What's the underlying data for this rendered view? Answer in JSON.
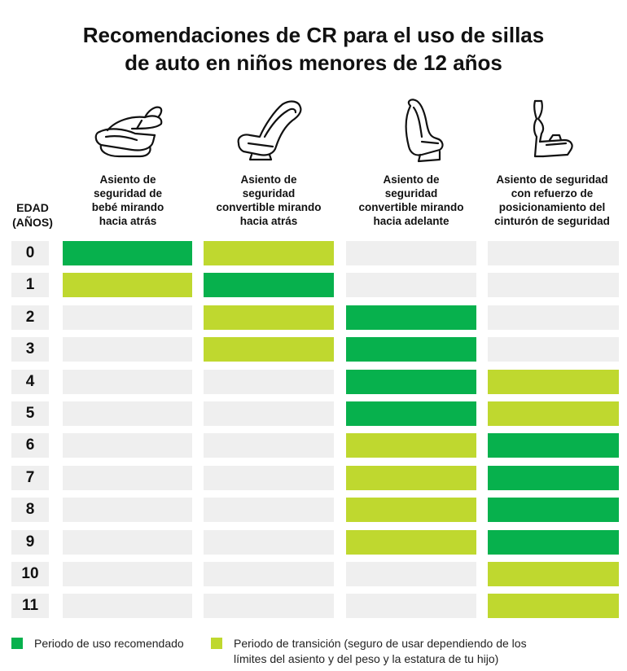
{
  "title": {
    "line1": "Recomendaciones de CR para el uso de sillas",
    "line2": "de auto en niños menores de 12 años"
  },
  "age_header": {
    "line1": "EDAD",
    "line2": "(AÑOS)"
  },
  "seats": [
    {
      "icon": "infant-carrier-seat-icon",
      "lines": [
        "Asiento de",
        "seguridad de",
        "bebé mirando",
        "hacia atrás"
      ]
    },
    {
      "icon": "rear-facing-convertible-seat-icon",
      "lines": [
        "Asiento de",
        "seguridad",
        "convertible mirando",
        "hacia atrás"
      ]
    },
    {
      "icon": "forward-facing-convertible-seat-icon",
      "lines": [
        "Asiento de",
        "seguridad",
        "convertible mirando",
        "hacia adelante"
      ]
    },
    {
      "icon": "booster-seat-icon",
      "lines": [
        "Asiento de seguridad",
        "con refuerzo de",
        "posicionamiento del",
        "cinturón de seguridad"
      ]
    }
  ],
  "colors": {
    "recommended": "#07b14d",
    "transition": "#bfd82f",
    "none": "#efefef"
  },
  "legend": {
    "recommended": "Periodo de uso recomendado",
    "transition_line1": "Periodo de transición (seguro de usar dependiendo de los",
    "transition_line2": "límites del asiento y del peso y la estatura de tu hijo)"
  },
  "chart_data": {
    "type": "table",
    "title": "Recomendaciones de CR para el uso de sillas de auto en niños menores de 12 años",
    "row_label": "EDAD (AÑOS)",
    "ages": [
      "0",
      "1",
      "2",
      "3",
      "4",
      "5",
      "6",
      "7",
      "8",
      "9",
      "10",
      "11"
    ],
    "columns": [
      "Asiento de seguridad de bebé mirando hacia atrás",
      "Asiento de seguridad convertible mirando hacia atrás",
      "Asiento de seguridad convertible mirando hacia adelante",
      "Asiento de seguridad con refuerzo de posicionamiento del cinturón de seguridad"
    ],
    "values": [
      [
        "recommended",
        "transition",
        "none",
        "none"
      ],
      [
        "transition",
        "recommended",
        "none",
        "none"
      ],
      [
        "none",
        "transition",
        "recommended",
        "none"
      ],
      [
        "none",
        "transition",
        "recommended",
        "none"
      ],
      [
        "none",
        "none",
        "recommended",
        "transition"
      ],
      [
        "none",
        "none",
        "recommended",
        "transition"
      ],
      [
        "none",
        "none",
        "transition",
        "recommended"
      ],
      [
        "none",
        "none",
        "transition",
        "recommended"
      ],
      [
        "none",
        "none",
        "transition",
        "recommended"
      ],
      [
        "none",
        "none",
        "transition",
        "recommended"
      ],
      [
        "none",
        "none",
        "none",
        "transition"
      ],
      [
        "none",
        "none",
        "none",
        "transition"
      ]
    ],
    "legend": [
      "Periodo de uso recomendado",
      "Periodo de transición (seguro de usar dependiendo de los límites del asiento y del peso y la estatura de tu hijo)"
    ]
  }
}
